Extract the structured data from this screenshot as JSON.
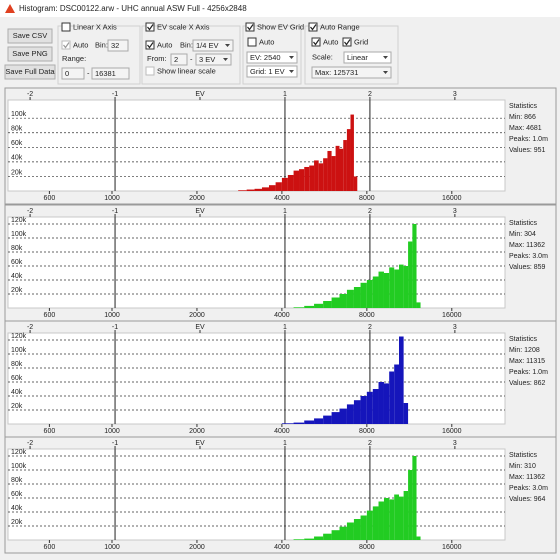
{
  "window": {
    "title": "Histogram: DSC00122.arw - UHC annual ASW Full - 4256x2848"
  },
  "toolbar": {
    "buttons": [
      "Save CSV",
      "Save PNG",
      "Save Full Data"
    ],
    "linear": {
      "label": "Linear X Axis",
      "checked": false,
      "auto": "Auto",
      "auto_checked": true,
      "bin_label": "Bin:",
      "bin": "32",
      "range_label": "Range:",
      "from": "0",
      "dash": "-",
      "to": "16381"
    },
    "ev": {
      "label": "EV scale X Axis",
      "checked": true,
      "auto": "Auto",
      "auto_checked": true,
      "bin_label": "Bin:",
      "bin": "1/4 EV",
      "from_label": "From:",
      "from": "2",
      "dash": "-",
      "to": "3 EV",
      "linear_label": "Show linear scale",
      "linear_checked": false
    },
    "grid": {
      "label": "Show EV Grid",
      "checked": true,
      "auto": "Auto",
      "auto_checked": false,
      "ev": "EV: 2540",
      "grid": "Grid: 1 EV"
    },
    "range": {
      "label": "Auto Range",
      "checked": true,
      "auto": "Auto",
      "auto_checked": true,
      "grid": "Grid",
      "grid_checked": true,
      "scale_label": "Scale:",
      "scale": "Linear",
      "max": "Max: 125731"
    }
  },
  "chart_data": [
    {
      "type": "histogram",
      "color": "#cc1111",
      "xscale": "log",
      "xlim": [
        428,
        24700
      ],
      "xticks": [
        600,
        1000,
        2000,
        4000,
        8000,
        16000
      ],
      "x2lim": [
        -2.26,
        3.59
      ],
      "x2ticks": [
        -2,
        -1,
        {
          "value": 0,
          "label": "EV"
        },
        1,
        2,
        3
      ],
      "vlines": [
        -1,
        1,
        2
      ],
      "ylim": [
        0,
        125000
      ],
      "yticks": [
        {
          "value": 20000,
          "label": "20k"
        },
        {
          "value": 40000,
          "label": "40k"
        },
        {
          "value": 60000,
          "label": "60k"
        },
        {
          "value": 80000,
          "label": "80k"
        },
        {
          "value": 100000,
          "label": "100k"
        }
      ],
      "grid": true,
      "bins": [
        2800,
        3000,
        3200,
        3400,
        3600,
        3800,
        4000,
        4200,
        4400,
        4600,
        4800,
        5000,
        5200,
        5400,
        5600,
        5800,
        6000,
        6200,
        6400,
        6600,
        6800,
        7000,
        7200,
        7400
      ],
      "values": [
        1000,
        2000,
        3000,
        5000,
        8000,
        12000,
        18000,
        22000,
        28000,
        30000,
        33000,
        35000,
        42000,
        38000,
        45000,
        55000,
        48000,
        62000,
        58000,
        70000,
        85000,
        105000,
        20000
      ],
      "stats": [
        "Statistics",
        "Min: 866",
        "Max: 4681",
        "Peaks: 1.0m",
        "Values: 951"
      ]
    },
    {
      "type": "histogram",
      "color": "#22cc22",
      "xscale": "log",
      "xlim": [
        428,
        24700
      ],
      "xticks": [
        600,
        1000,
        2000,
        4000,
        8000,
        16000
      ],
      "x2lim": [
        -2.26,
        3.59
      ],
      "x2ticks": [
        -2,
        -1,
        {
          "value": 0,
          "label": "EV"
        },
        1,
        2,
        3
      ],
      "vlines": [
        -1,
        1,
        2
      ],
      "ylim": [
        0,
        130000
      ],
      "yticks": [
        {
          "value": 20000,
          "label": "20k"
        },
        {
          "value": 40000,
          "label": "40k"
        },
        {
          "value": 60000,
          "label": "60k"
        },
        {
          "value": 80000,
          "label": "80k"
        },
        {
          "value": 100000,
          "label": "100k"
        },
        {
          "value": 120000,
          "label": "120k"
        }
      ],
      "grid": true,
      "bins": [
        4400,
        4800,
        5200,
        5600,
        6000,
        6400,
        6800,
        7200,
        7600,
        8000,
        8400,
        8800,
        9200,
        9600,
        10000,
        10400,
        10800,
        11200,
        11600,
        12000,
        12400
      ],
      "values": [
        1000,
        3000,
        6000,
        10000,
        15000,
        20000,
        26000,
        30000,
        36000,
        40000,
        45000,
        52000,
        50000,
        58000,
        55000,
        62000,
        60000,
        95000,
        120000,
        8000
      ],
      "stats": [
        "Statistics",
        "Min: 304",
        "Max: 11362",
        "Peaks: 3.0m",
        "Values: 859"
      ]
    },
    {
      "type": "histogram",
      "color": "#1515bb",
      "xscale": "log",
      "xlim": [
        428,
        24700
      ],
      "xticks": [
        600,
        1000,
        2000,
        4000,
        8000,
        16000
      ],
      "x2lim": [
        -2.26,
        3.59
      ],
      "x2ticks": [
        -2,
        -1,
        {
          "value": 0,
          "label": "EV"
        },
        1,
        2,
        3
      ],
      "vlines": [
        -1,
        1,
        2
      ],
      "ylim": [
        0,
        130000
      ],
      "yticks": [
        {
          "value": 20000,
          "label": "20k"
        },
        {
          "value": 40000,
          "label": "40k"
        },
        {
          "value": 60000,
          "label": "60k"
        },
        {
          "value": 80000,
          "label": "80k"
        },
        {
          "value": 100000,
          "label": "100k"
        },
        {
          "value": 120000,
          "label": "120k"
        }
      ],
      "grid": true,
      "bins": [
        4000,
        4400,
        4800,
        5200,
        5600,
        6000,
        6400,
        6800,
        7200,
        7600,
        8000,
        8400,
        8800,
        9200,
        9600,
        10000,
        10400,
        10800,
        11200
      ],
      "values": [
        1000,
        2000,
        5000,
        8000,
        12000,
        17000,
        22000,
        28000,
        34000,
        40000,
        46000,
        50000,
        60000,
        58000,
        75000,
        85000,
        125000,
        30000
      ],
      "stats": [
        "Statistics",
        "Min: 1208",
        "Max: 11315",
        "Peaks: 1.0m",
        "Values: 862"
      ]
    },
    {
      "type": "histogram",
      "color": "#22cc22",
      "xscale": "log",
      "xlim": [
        428,
        24700
      ],
      "xticks": [
        600,
        1000,
        2000,
        4000,
        8000,
        16000
      ],
      "x2lim": [
        -2.26,
        3.59
      ],
      "x2ticks": [
        -2,
        -1,
        {
          "value": 0,
          "label": "EV"
        },
        1,
        2,
        3
      ],
      "vlines": [
        -1,
        1,
        2
      ],
      "ylim": [
        0,
        130000
      ],
      "yticks": [
        {
          "value": 20000,
          "label": "20k"
        },
        {
          "value": 40000,
          "label": "40k"
        },
        {
          "value": 60000,
          "label": "60k"
        },
        {
          "value": 80000,
          "label": "80k"
        },
        {
          "value": 100000,
          "label": "100k"
        },
        {
          "value": 120000,
          "label": "120k"
        }
      ],
      "grid": true,
      "bins": [
        4400,
        4800,
        5200,
        5600,
        6000,
        6400,
        6800,
        7200,
        7600,
        8000,
        8400,
        8800,
        9200,
        9600,
        10000,
        10400,
        10800,
        11200,
        11600,
        12000,
        12400
      ],
      "values": [
        1000,
        2000,
        5000,
        9000,
        14000,
        19000,
        25000,
        30000,
        35000,
        42000,
        48000,
        55000,
        60000,
        58000,
        65000,
        62000,
        70000,
        100000,
        120000,
        5000
      ],
      "stats": [
        "Statistics",
        "Min: 310",
        "Max: 11362",
        "Peaks: 3.0m",
        "Values: 964"
      ]
    }
  ]
}
